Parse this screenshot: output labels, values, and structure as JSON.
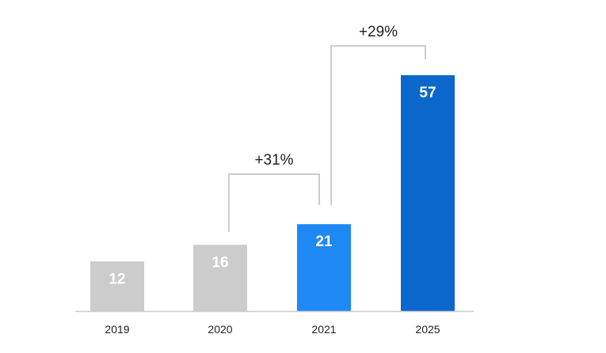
{
  "chart_data": {
    "type": "bar",
    "categories": [
      "2019",
      "2020",
      "2021",
      "2025"
    ],
    "values": [
      12,
      16,
      21,
      57
    ],
    "data_labels": [
      "12",
      "16",
      "21",
      "57"
    ],
    "bar_colors": [
      "#cccccc",
      "#cccccc",
      "#1e88f5",
      "#0b67cc"
    ],
    "ylim": [
      0,
      70
    ],
    "grid": false,
    "annotations": [
      {
        "from": "2020",
        "to": "2021",
        "text": "+31%"
      },
      {
        "from": "2021",
        "to": "2025",
        "text": "+29%"
      }
    ]
  },
  "colors": {
    "axis": "#cccccc",
    "bracket": "#cccccc",
    "text": "#222222",
    "bar_text": "#ffffff"
  }
}
